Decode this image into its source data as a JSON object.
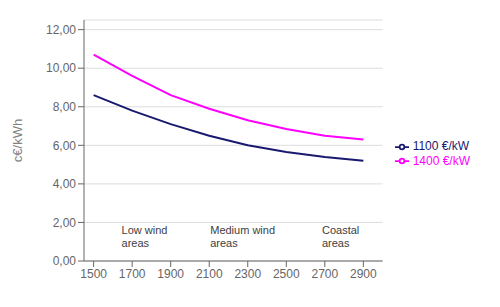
{
  "chart_data": {
    "type": "line",
    "x": [
      1500,
      1700,
      1900,
      2100,
      2300,
      2500,
      2700,
      2900
    ],
    "series": [
      {
        "name": "1100 €/kW",
        "color": "#191970",
        "values": [
          8.6,
          7.8,
          7.1,
          6.5,
          6.0,
          5.65,
          5.4,
          5.2
        ]
      },
      {
        "name": "1400 €/kW",
        "color": "#FF00FF",
        "values": [
          10.7,
          9.6,
          8.6,
          7.9,
          7.3,
          6.85,
          6.5,
          6.3
        ]
      }
    ],
    "ylabel": "c€/kWh",
    "xlim": [
      1450,
      3000
    ],
    "ylim": [
      0,
      12.5
    ],
    "xticks": [
      1500,
      1700,
      1900,
      2100,
      2300,
      2500,
      2700,
      2900
    ],
    "yticks": [
      {
        "value": 0,
        "label": "0,00"
      },
      {
        "value": 2,
        "label": "2,00"
      },
      {
        "value": 4,
        "label": "4,00"
      },
      {
        "value": 6,
        "label": "6,00"
      },
      {
        "value": 8,
        "label": "8,00"
      },
      {
        "value": 10,
        "label": "10,00"
      },
      {
        "value": 12,
        "label": "12,00"
      }
    ],
    "annotations": [
      {
        "text": "Low wind\nareas",
        "x": 1640,
        "y": 0.55
      },
      {
        "text": "Medium wind\nareas",
        "x": 2100,
        "y": 0.55
      },
      {
        "text": "Coastal\nareas",
        "x": 2680,
        "y": 0.55
      }
    ],
    "grid": true,
    "legend": "right"
  }
}
